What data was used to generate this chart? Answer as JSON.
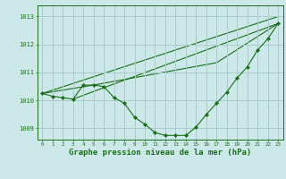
{
  "background_color": "#cce8e8",
  "grid_color": "#aacccc",
  "line_color": "#1a6e1a",
  "xlabel": "Graphe pression niveau de la mer (hPa)",
  "xlabel_fontsize": 6.5,
  "ylabel_ticks": [
    1009,
    1010,
    1011,
    1012,
    1013
  ],
  "xlim": [
    -0.5,
    23.5
  ],
  "ylim": [
    1008.6,
    1013.4
  ],
  "x": [
    0,
    1,
    2,
    3,
    4,
    5,
    6,
    7,
    8,
    9,
    10,
    11,
    12,
    13,
    14,
    15,
    16,
    17,
    18,
    19,
    20,
    21,
    22,
    23
  ],
  "series1": [
    1010.25,
    1010.15,
    1010.1,
    1010.05,
    1010.55,
    1010.55,
    1010.5,
    1010.1,
    1009.9,
    1009.4,
    1009.15,
    1008.85,
    1008.75,
    1008.75,
    1008.75,
    1009.05,
    1009.5,
    1009.9,
    1010.3,
    1010.8,
    1011.2,
    1011.8,
    1012.2,
    1012.75
  ],
  "line1_x": [
    0,
    23
  ],
  "line1_y": [
    1010.25,
    1013.0
  ],
  "line2_x": [
    3,
    23
  ],
  "line2_y": [
    1010.05,
    1012.75
  ],
  "line3_x": [
    0,
    5,
    17,
    23
  ],
  "line3_y": [
    1010.25,
    1010.55,
    1011.35,
    1012.75
  ]
}
